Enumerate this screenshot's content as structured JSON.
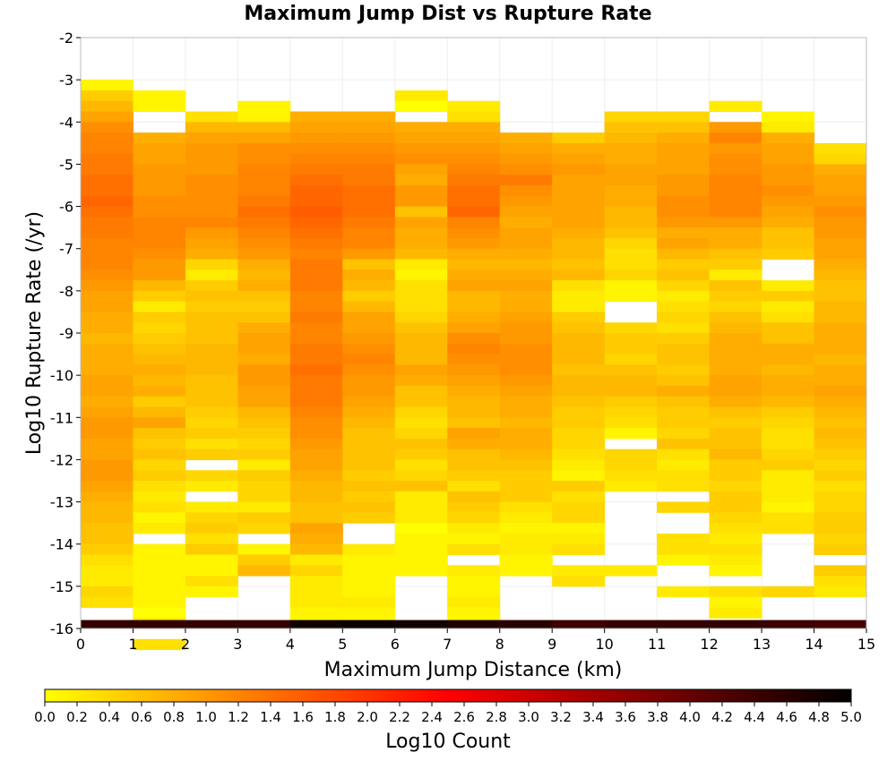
{
  "chart_data": {
    "type": "heatmap",
    "title": "Maximum Jump Dist vs Rupture Rate",
    "xlabel": "Maximum Jump Distance (km)",
    "ylabel": "Log10 Rupture Rate (/yr)",
    "xlim": [
      0,
      15
    ],
    "ylim": [
      -16,
      -2
    ],
    "x_ticks": [
      0,
      1,
      2,
      3,
      4,
      5,
      6,
      7,
      8,
      9,
      10,
      11,
      12,
      13,
      14,
      15
    ],
    "y_ticks": [
      -2,
      -3,
      -4,
      -5,
      -6,
      -7,
      -8,
      -9,
      -10,
      -11,
      -12,
      -13,
      -14,
      -15,
      -16
    ],
    "x_bins": [
      0,
      1,
      2,
      3,
      4,
      5,
      6,
      7,
      8,
      9,
      10,
      11,
      12,
      13,
      14,
      15
    ],
    "y_bin_start": -3.0,
    "y_bin_step": 0.25,
    "colorbar": {
      "label": "Log10 Count",
      "range": [
        0.0,
        5.0
      ],
      "ticks": [
        "0.0",
        "0.2",
        "0.4",
        "0.6",
        "0.8",
        "1.0",
        "1.2",
        "1.4",
        "1.6",
        "1.8",
        "2.0",
        "2.2",
        "2.4",
        "2.6",
        "2.8",
        "3.0",
        "3.2",
        "3.4",
        "3.6",
        "3.8",
        "4.0",
        "4.2",
        "4.4",
        "4.6",
        "4.8",
        "5.0"
      ],
      "colors": [
        "#ffff00",
        "#ffaa00",
        "#ff5500",
        "#ff0000",
        "#aa0000",
        "#550000",
        "#000000"
      ]
    },
    "bottom_row": {
      "y": -15.9,
      "values": [
        4.5,
        4.5,
        4.5,
        4.5,
        4.85,
        4.9,
        4.8,
        4.7,
        4.6,
        4.4,
        4.5,
        4.5,
        4.5,
        4.4,
        4.3
      ]
    },
    "columns": [
      [
        0.1,
        0.5,
        0.7,
        0.9,
        1.1,
        1.2,
        1.2,
        1.3,
        1.3,
        1.4,
        1.4,
        1.5,
        1.4,
        1.3,
        1.3,
        1.2,
        1.2,
        1.2,
        1.1,
        1.0,
        0.9,
        0.9,
        0.8,
        0.8,
        0.7,
        0.8,
        0.8,
        0.8,
        0.9,
        0.9,
        0.8,
        0.9,
        1.0,
        1.0,
        0.9,
        0.9,
        1.0,
        1.0,
        0.9,
        0.8,
        0.7,
        0.7,
        0.6,
        0.6,
        0.5,
        0.3,
        0.2,
        0.2,
        0.4,
        0.3,
        null,
        null,
        null,
        null,
        null,
        null,
        null,
        null,
        null,
        null,
        null,
        null
      ],
      [
        null,
        0.1,
        0.1,
        null,
        null,
        0.8,
        0.9,
        0.9,
        1.0,
        1.0,
        1.0,
        1.1,
        1.1,
        1.2,
        1.2,
        1.2,
        1.1,
        1.0,
        1.0,
        0.7,
        0.5,
        0.2,
        0.5,
        0.4,
        0.5,
        0.6,
        0.7,
        0.8,
        0.7,
        0.8,
        0.5,
        0.7,
        0.9,
        0.6,
        0.5,
        0.6,
        0.4,
        0.5,
        0.3,
        0.2,
        0.3,
        0.1,
        0.2,
        null,
        0.1,
        0.1,
        0.1,
        0.1,
        0.1,
        0.1,
        0.0,
        0.2,
        null,
        0.3,
        null,
        null,
        null,
        null,
        null,
        null,
        null,
        null
      ],
      [
        null,
        null,
        null,
        0.3,
        0.7,
        0.9,
        1.0,
        1.0,
        1.0,
        1.1,
        1.1,
        1.1,
        1.1,
        1.2,
        1.0,
        0.9,
        0.8,
        0.4,
        0.2,
        0.5,
        0.6,
        0.5,
        0.6,
        0.6,
        0.6,
        0.7,
        0.7,
        0.7,
        0.6,
        0.6,
        0.6,
        0.5,
        0.4,
        0.5,
        0.3,
        0.5,
        null,
        0.4,
        0.2,
        null,
        0.2,
        0.4,
        0.5,
        0.3,
        0.5,
        0.1,
        0.1,
        0.3,
        0.1,
        null,
        null,
        null,
        null,
        null,
        null,
        null,
        null,
        null,
        null,
        null,
        null,
        null
      ],
      [
        null,
        null,
        0.1,
        0.1,
        0.7,
        0.9,
        1.1,
        1.1,
        1.2,
        1.2,
        1.2,
        1.3,
        1.4,
        1.3,
        1.2,
        1.1,
        1.0,
        0.8,
        0.7,
        0.8,
        0.6,
        0.5,
        0.6,
        0.8,
        0.9,
        0.9,
        0.8,
        1.0,
        1.0,
        0.9,
        0.9,
        0.7,
        0.6,
        0.5,
        0.4,
        0.5,
        0.2,
        0.5,
        0.4,
        0.4,
        0.2,
        0.5,
        0.4,
        null,
        0.1,
        0.5,
        0.7,
        null,
        null,
        null,
        null,
        null,
        null,
        null,
        null,
        null,
        null,
        null,
        null,
        null,
        null,
        null
      ],
      [
        null,
        null,
        null,
        0.8,
        0.9,
        1.0,
        1.1,
        1.2,
        1.3,
        1.4,
        1.5,
        1.5,
        1.6,
        1.5,
        1.4,
        1.3,
        1.2,
        1.3,
        1.3,
        1.3,
        1.2,
        1.2,
        1.3,
        1.2,
        1.2,
        1.3,
        1.3,
        1.4,
        1.3,
        1.3,
        1.3,
        1.2,
        1.1,
        1.1,
        1.0,
        0.9,
        0.9,
        0.8,
        0.7,
        0.7,
        0.6,
        0.6,
        0.9,
        0.8,
        0.7,
        0.2,
        0.4,
        0.2,
        0.2,
        0.2,
        0.1,
        0.1,
        null,
        null,
        null,
        null,
        null,
        null,
        null,
        null,
        null,
        null
      ],
      [
        null,
        null,
        null,
        0.8,
        0.9,
        1.0,
        1.1,
        1.2,
        1.3,
        1.3,
        1.4,
        1.4,
        1.4,
        1.3,
        1.2,
        1.2,
        1.0,
        0.6,
        0.8,
        0.7,
        0.5,
        0.7,
        0.9,
        0.9,
        1.0,
        1.1,
        1.2,
        1.1,
        1.0,
        1.0,
        0.9,
        0.8,
        0.7,
        0.6,
        0.6,
        0.6,
        0.6,
        0.5,
        0.6,
        0.5,
        0.6,
        0.5,
        null,
        null,
        0.2,
        0.1,
        0.1,
        0.1,
        0.1,
        0.2,
        0.1,
        0.1,
        null,
        null,
        null,
        null,
        null,
        null,
        null,
        null,
        null,
        null
      ],
      [
        null,
        0.2,
        0.0,
        null,
        0.8,
        0.9,
        1.0,
        1.1,
        0.9,
        0.8,
        1.0,
        1.0,
        0.6,
        0.9,
        0.8,
        0.8,
        0.7,
        0.2,
        0.1,
        0.3,
        0.3,
        0.3,
        0.4,
        0.6,
        0.7,
        0.7,
        0.7,
        0.9,
        0.8,
        0.6,
        0.6,
        0.4,
        0.3,
        0.4,
        0.6,
        0.5,
        0.3,
        0.4,
        0.6,
        0.2,
        0.2,
        0.2,
        0.0,
        0.1,
        0.1,
        0.1,
        0.1,
        null,
        null,
        null,
        null,
        null,
        null,
        null,
        null,
        null,
        null,
        null,
        null,
        null,
        null,
        null
      ],
      [
        null,
        null,
        0.2,
        0.3,
        0.8,
        0.9,
        1.0,
        1.1,
        1.2,
        1.3,
        1.4,
        1.4,
        1.5,
        1.2,
        1.1,
        1.0,
        0.8,
        0.7,
        0.8,
        0.9,
        0.7,
        0.7,
        0.8,
        0.9,
        1.1,
        1.2,
        1.1,
        1.0,
        0.9,
        0.8,
        0.7,
        0.7,
        0.6,
        0.9,
        0.8,
        0.6,
        0.6,
        0.5,
        0.3,
        0.6,
        0.5,
        0.4,
        0.2,
        0.1,
        0.3,
        null,
        0.2,
        0.1,
        0.1,
        0.2,
        0.1,
        0.1,
        null,
        null,
        null,
        null,
        null,
        null,
        null,
        null,
        null,
        null
      ],
      [
        null,
        null,
        null,
        null,
        null,
        0.8,
        0.9,
        1.0,
        1.1,
        1.3,
        1.1,
        1.0,
        0.9,
        0.8,
        0.9,
        0.9,
        0.8,
        0.7,
        0.8,
        0.9,
        0.8,
        0.8,
        0.9,
        1.0,
        1.0,
        1.1,
        1.1,
        1.1,
        1.0,
        0.9,
        0.8,
        0.8,
        0.7,
        0.8,
        0.8,
        0.7,
        0.6,
        0.5,
        0.5,
        0.5,
        0.3,
        0.2,
        0.1,
        0.2,
        0.2,
        0.1,
        0.1,
        null,
        null,
        null,
        null,
        null,
        null,
        null,
        null,
        null,
        null,
        null,
        null,
        null,
        null,
        null
      ],
      [
        null,
        null,
        null,
        null,
        null,
        0.5,
        0.8,
        0.9,
        1.0,
        0.9,
        0.9,
        0.9,
        0.9,
        0.9,
        0.8,
        0.7,
        0.7,
        0.6,
        0.7,
        0.3,
        0.2,
        0.2,
        0.5,
        0.6,
        0.7,
        0.7,
        0.7,
        0.6,
        0.7,
        0.7,
        0.6,
        0.5,
        0.5,
        0.4,
        0.4,
        0.3,
        0.2,
        0.1,
        0.5,
        0.3,
        0.4,
        0.4,
        0.1,
        0.2,
        0.3,
        null,
        0.2,
        0.3,
        null,
        null,
        null,
        null,
        null,
        null,
        null,
        null,
        null,
        null,
        null,
        null,
        null,
        null
      ],
      [
        null,
        null,
        null,
        0.4,
        0.6,
        0.7,
        0.8,
        0.8,
        0.9,
        0.9,
        0.8,
        0.8,
        0.7,
        0.7,
        0.6,
        0.4,
        0.3,
        0.3,
        0.4,
        0.1,
        0.1,
        null,
        null,
        0.4,
        0.5,
        0.5,
        0.4,
        0.6,
        0.7,
        0.7,
        0.5,
        0.4,
        0.3,
        0.1,
        null,
        0.4,
        0.4,
        0.3,
        0.2,
        null,
        null,
        null,
        null,
        null,
        null,
        null,
        0.2,
        null,
        null,
        null,
        null,
        null,
        null,
        null,
        null,
        null,
        null,
        null,
        null,
        null,
        null,
        null
      ],
      [
        null,
        null,
        null,
        0.4,
        0.6,
        0.8,
        0.9,
        0.9,
        0.9,
        1.0,
        1.0,
        1.1,
        1.1,
        1.0,
        0.8,
        0.9,
        0.7,
        0.5,
        0.6,
        0.4,
        0.2,
        0.3,
        0.4,
        0.3,
        0.5,
        0.6,
        0.6,
        0.5,
        0.6,
        0.8,
        0.6,
        0.5,
        0.5,
        0.4,
        0.6,
        0.3,
        0.2,
        0.3,
        0.3,
        null,
        0.4,
        null,
        null,
        0.3,
        0.3,
        0.1,
        null,
        null,
        0.2,
        null,
        null,
        null,
        null,
        null,
        null,
        null,
        null,
        null,
        null,
        null,
        null,
        null
      ],
      [
        null,
        null,
        0.2,
        null,
        1.0,
        1.2,
        1.0,
        1.1,
        1.1,
        1.2,
        1.2,
        1.2,
        1.2,
        1.0,
        0.8,
        0.8,
        0.6,
        0.5,
        0.2,
        0.6,
        0.5,
        0.4,
        0.6,
        0.7,
        0.8,
        0.8,
        0.8,
        0.8,
        0.9,
        0.9,
        0.8,
        0.6,
        0.5,
        0.6,
        0.6,
        0.7,
        0.5,
        0.5,
        0.4,
        0.5,
        0.5,
        0.4,
        0.3,
        0.2,
        0.3,
        0.2,
        0.1,
        null,
        0.3,
        0.1,
        0.2,
        null,
        null,
        null,
        null,
        null,
        null,
        null,
        null,
        null,
        null,
        null
      ],
      [
        null,
        null,
        null,
        0.1,
        0.2,
        0.8,
        0.9,
        0.9,
        1.0,
        1.0,
        1.1,
        1.0,
        0.9,
        0.8,
        0.6,
        0.6,
        0.5,
        null,
        null,
        0.2,
        0.5,
        0.2,
        0.3,
        0.6,
        0.6,
        0.8,
        0.8,
        0.7,
        0.8,
        0.8,
        0.7,
        0.5,
        0.4,
        0.3,
        0.3,
        0.4,
        0.5,
        0.2,
        0.2,
        0.2,
        0.1,
        0.3,
        0.3,
        null,
        null,
        null,
        null,
        null,
        0.4,
        null,
        null,
        null,
        null,
        null,
        null,
        null,
        null,
        null,
        null,
        null,
        null,
        null
      ],
      [
        null,
        null,
        null,
        null,
        null,
        null,
        0.3,
        0.4,
        0.8,
        0.9,
        0.9,
        1.0,
        1.1,
        1.0,
        1.0,
        0.9,
        0.9,
        0.8,
        0.7,
        0.6,
        0.6,
        0.7,
        0.7,
        0.8,
        0.8,
        0.8,
        0.7,
        0.8,
        0.8,
        0.9,
        0.8,
        0.7,
        0.6,
        0.7,
        0.6,
        0.5,
        0.4,
        0.5,
        0.3,
        0.4,
        0.4,
        0.5,
        0.5,
        0.4,
        0.5,
        null,
        0.5,
        0.3,
        0.2,
        null,
        null,
        null,
        null,
        null,
        null,
        null,
        null,
        null,
        null,
        null,
        null,
        null
      ]
    ]
  }
}
